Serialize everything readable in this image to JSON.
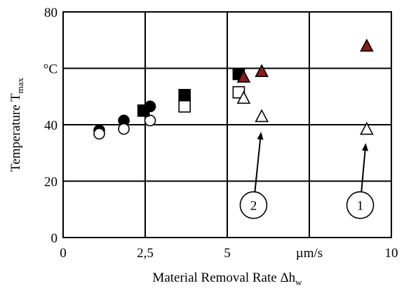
{
  "chart_data": {
    "type": "scatter",
    "xlabel": "Material Removal Rate Δh",
    "xlabel_sub": "w",
    "ylabel": "Temperature T",
    "ylabel_sub": "max",
    "xlim": [
      0,
      10
    ],
    "ylim": [
      0,
      80
    ],
    "grid": true,
    "x_ticks": [
      {
        "value": 0,
        "label": "0"
      },
      {
        "value": 2.5,
        "label": "2,5"
      },
      {
        "value": 5,
        "label": "5"
      },
      {
        "value": 7.5,
        "label": "µm/s"
      },
      {
        "value": 10,
        "label": "10"
      }
    ],
    "y_ticks": [
      {
        "value": 0,
        "label": "0"
      },
      {
        "value": 20,
        "label": "20"
      },
      {
        "value": 40,
        "label": "40"
      },
      {
        "value": 60,
        "label": "°C"
      },
      {
        "value": 80,
        "label": "80"
      }
    ],
    "series": [
      {
        "marker": "circle",
        "fill": "#000000",
        "stroke": "#000000",
        "points": [
          {
            "x": 1.1,
            "y": 38
          },
          {
            "x": 1.85,
            "y": 41.5
          },
          {
            "x": 2.65,
            "y": 46.5
          }
        ]
      },
      {
        "marker": "circle",
        "fill": "#ffffff",
        "stroke": "#000000",
        "points": [
          {
            "x": 1.1,
            "y": 36.8
          },
          {
            "x": 1.85,
            "y": 38.5
          },
          {
            "x": 2.65,
            "y": 41.5
          }
        ]
      },
      {
        "marker": "square",
        "fill": "#000000",
        "stroke": "#000000",
        "points": [
          {
            "x": 2.45,
            "y": 45
          },
          {
            "x": 3.7,
            "y": 50.5
          },
          {
            "x": 5.35,
            "y": 58
          }
        ]
      },
      {
        "marker": "square",
        "fill": "#ffffff",
        "stroke": "#000000",
        "points": [
          {
            "x": 3.7,
            "y": 46.5
          },
          {
            "x": 5.35,
            "y": 51.5
          }
        ]
      },
      {
        "marker": "triangle",
        "fill": "#8b1a1a",
        "stroke": "#000000",
        "points": [
          {
            "x": 5.5,
            "y": 57
          },
          {
            "x": 6.05,
            "y": 59
          },
          {
            "x": 9.25,
            "y": 68
          }
        ]
      },
      {
        "marker": "triangle",
        "fill": "#ffffff",
        "stroke": "#000000",
        "points": [
          {
            "x": 5.5,
            "y": 49.5
          },
          {
            "x": 6.05,
            "y": 43
          },
          {
            "x": 9.25,
            "y": 38.5
          }
        ]
      }
    ],
    "annotations": [
      {
        "label": "2",
        "circle_at": {
          "x": 5.8,
          "y": 11.5
        },
        "arrow_to": {
          "x": 6.03,
          "y": 37.5
        }
      },
      {
        "label": "1",
        "circle_at": {
          "x": 9.05,
          "y": 11.5
        },
        "arrow_to": {
          "x": 9.22,
          "y": 33.5
        }
      }
    ]
  }
}
